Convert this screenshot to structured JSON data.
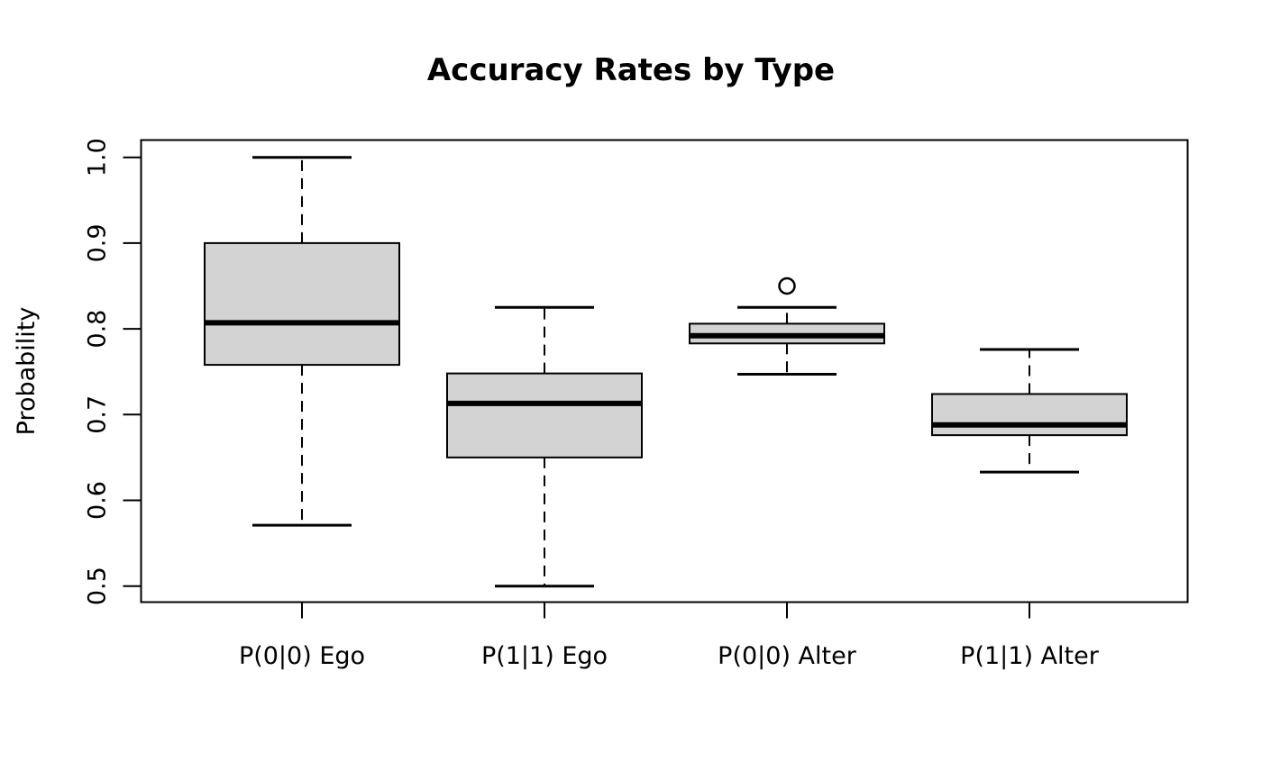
{
  "chart_data": {
    "type": "boxplot",
    "title": "Accuracy Rates by Type",
    "xlabel": "",
    "ylabel": "Probability",
    "categories": [
      "P(0|0) Ego",
      "P(1|1) Ego",
      "P(0|0) Alter",
      "P(1|1) Alter"
    ],
    "series": [
      {
        "name": "P(0|0) Ego",
        "whisker_low": 0.571,
        "q1": 0.758,
        "median": 0.807,
        "q3": 0.9,
        "whisker_high": 1.0,
        "outliers": []
      },
      {
        "name": "P(1|1) Ego",
        "whisker_low": 0.5,
        "q1": 0.65,
        "median": 0.713,
        "q3": 0.748,
        "whisker_high": 0.825,
        "outliers": []
      },
      {
        "name": "P(0|0) Alter",
        "whisker_low": 0.747,
        "q1": 0.783,
        "median": 0.792,
        "q3": 0.806,
        "whisker_high": 0.825,
        "outliers": [
          0.85
        ]
      },
      {
        "name": "P(1|1) Alter",
        "whisker_low": 0.633,
        "q1": 0.676,
        "median": 0.688,
        "q3": 0.724,
        "whisker_high": 0.776,
        "outliers": []
      }
    ],
    "y_ticks": [
      "0.5",
      "0.6",
      "0.7",
      "0.8",
      "0.9",
      "1.0"
    ],
    "ylim": [
      0.4815,
      1.02
    ],
    "grid": false,
    "legend_position": "none",
    "colors": {
      "box_fill": "#d3d3d3",
      "stroke": "#000000",
      "text": "#000000",
      "background": "#ffffff"
    }
  }
}
